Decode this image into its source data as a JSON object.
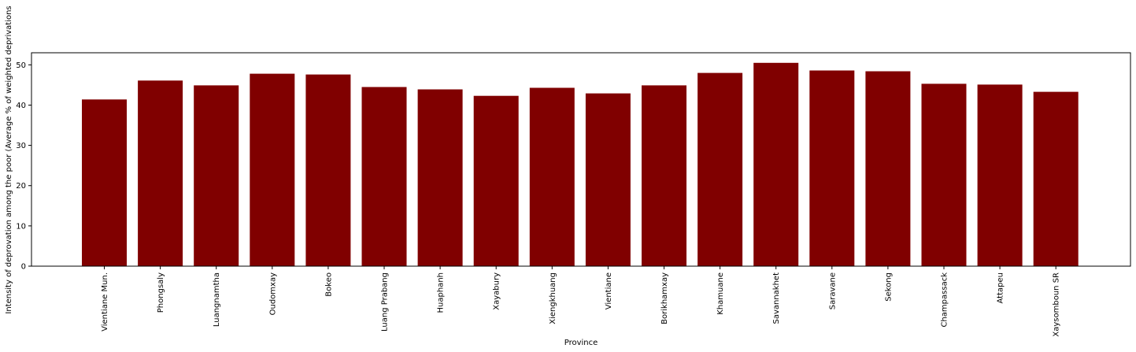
{
  "chart_data": {
    "type": "bar",
    "xlabel": "Province",
    "ylabel": "Intensity of deprovation among the poor (Average % of weighted deprivations",
    "ylim": [
      0,
      53
    ],
    "yticks": [
      0,
      10,
      20,
      30,
      40,
      50
    ],
    "bar_color": "#800000",
    "grid": false,
    "categories": [
      "Vientiane Mun.",
      "Phongsaly",
      "Luangnamtha",
      "Oudomxay",
      "Bokeo",
      "Luang Prabang",
      "Huaphanh",
      "Xayabury",
      "Xiengkhuang",
      "Vientiane",
      "Borikhamxay",
      "Khamuane",
      "Savannakhet",
      "Saravane",
      "Sekong",
      "Champassack",
      "Attapeu",
      "Xaysomboun SR"
    ],
    "values": [
      41.4,
      46.1,
      44.9,
      47.8,
      47.6,
      44.5,
      43.9,
      42.3,
      44.3,
      42.9,
      44.9,
      48.0,
      50.5,
      48.6,
      48.4,
      45.3,
      45.1,
      43.3
    ]
  }
}
